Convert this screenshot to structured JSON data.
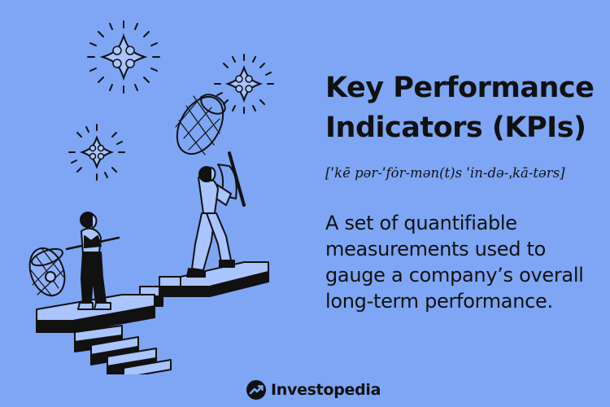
{
  "content": {
    "title": "Key Performance Indicators (KPIs)",
    "pronunciation": "[ˈkē pər-ˈfȯr-mən(t)s ˈin-də-ˌkā-tərs]",
    "definition": "A set of quantifiable measurements used to gauge a company’s overall long-term performance."
  },
  "brand": {
    "name": "Investopedia",
    "logo_icon": "investopedia-logo-icon"
  },
  "colors": {
    "background": "#7ea6f5",
    "text": "#111111",
    "highlight": "#a9c4ff"
  }
}
